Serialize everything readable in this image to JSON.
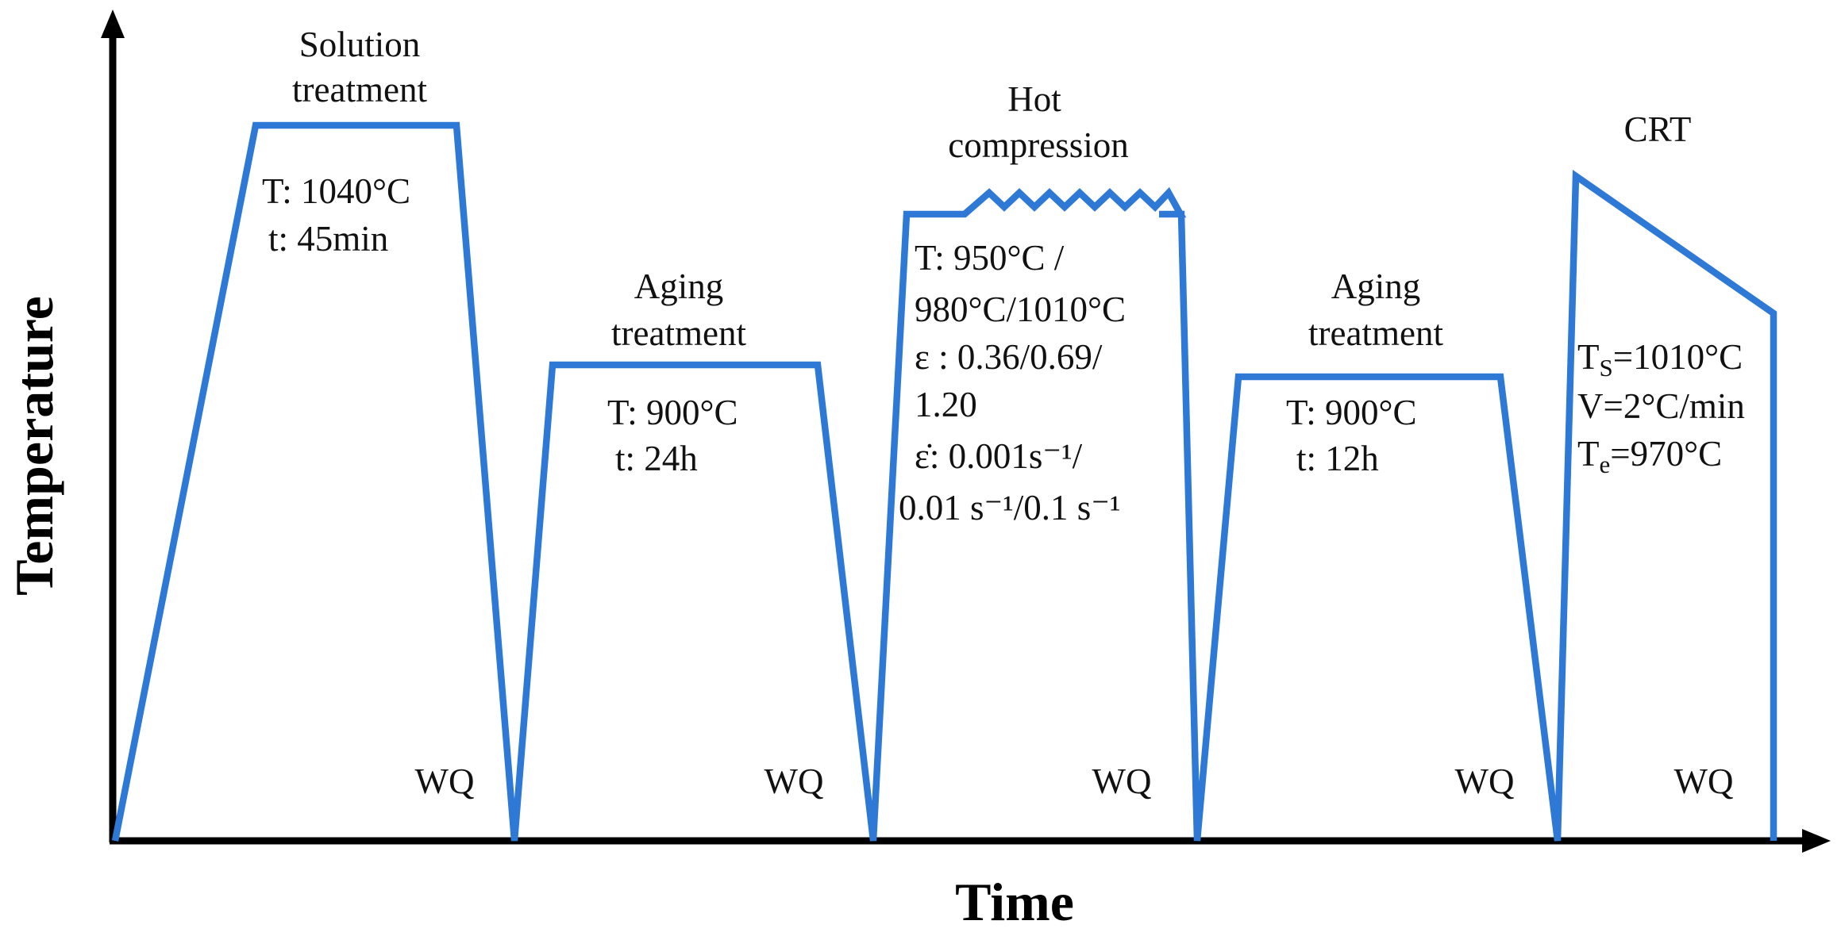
{
  "colors": {
    "profile_line": "#2e78d6",
    "axes": "#000000",
    "text": "#111111"
  },
  "axes": {
    "x_title": "Time",
    "y_title": "Temperature"
  },
  "stages": [
    {
      "title_lines": [
        "Solution",
        "treatment"
      ],
      "params": [
        "T: 1040°C",
        "t: 45min"
      ],
      "quench": "WQ"
    },
    {
      "title_lines": [
        "Aging",
        "treatment"
      ],
      "params": [
        "T: 900°C",
        "t: 24h"
      ],
      "quench": "WQ"
    },
    {
      "title_lines": [
        "Hot",
        "compression"
      ],
      "params": [
        "T: 950°C /",
        "980°C/1010°C",
        "ε : 0.36/0.69/",
        "1.20",
        "ε̇:  0.001s⁻¹/",
        "0.01 s⁻¹/0.1 s⁻¹"
      ],
      "quench": "WQ"
    },
    {
      "title_lines": [
        "Aging",
        "treatment"
      ],
      "params": [
        "T: 900°C",
        "t: 12h"
      ],
      "quench": "WQ"
    },
    {
      "title_lines": [
        "CRT"
      ],
      "params_rich": [
        {
          "main": "T",
          "sub": "S",
          "rest": "=1010°C"
        },
        {
          "main": "V=2°C/min",
          "sub": "",
          "rest": ""
        },
        {
          "main": "T",
          "sub": "e",
          "rest": "=970°C"
        }
      ],
      "quench": "WQ"
    }
  ]
}
